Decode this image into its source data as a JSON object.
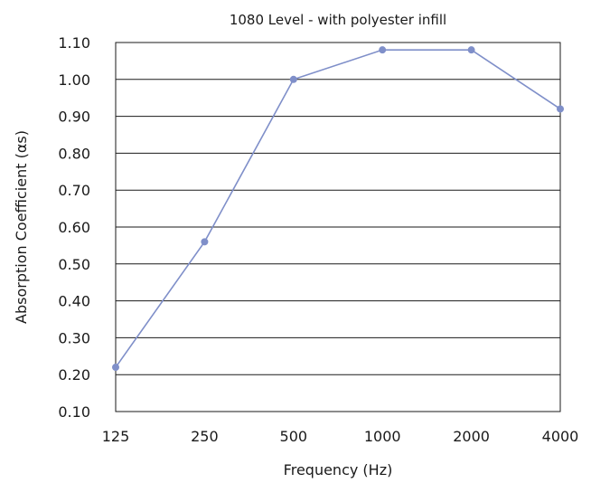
{
  "chart_data": {
    "type": "line",
    "title": "1080 Level - with polyester infill",
    "xlabel": "Frequency (Hz)",
    "ylabel": "Absorption Coefficient (αs)",
    "categories": [
      "125",
      "250",
      "500",
      "1000",
      "2000",
      "4000"
    ],
    "series": [
      {
        "values": [
          0.22,
          0.56,
          1.0,
          1.08,
          1.08,
          0.92
        ]
      }
    ],
    "ylim": [
      0.1,
      1.1
    ],
    "yticks": [
      "0.10",
      "0.20",
      "0.30",
      "0.40",
      "0.50",
      "0.60",
      "0.70",
      "0.80",
      "0.90",
      "1.00",
      "1.10"
    ],
    "grid": true,
    "legend": "none",
    "colors": {
      "series": "#7f8fc9",
      "grid": "#1a1a1a"
    }
  }
}
